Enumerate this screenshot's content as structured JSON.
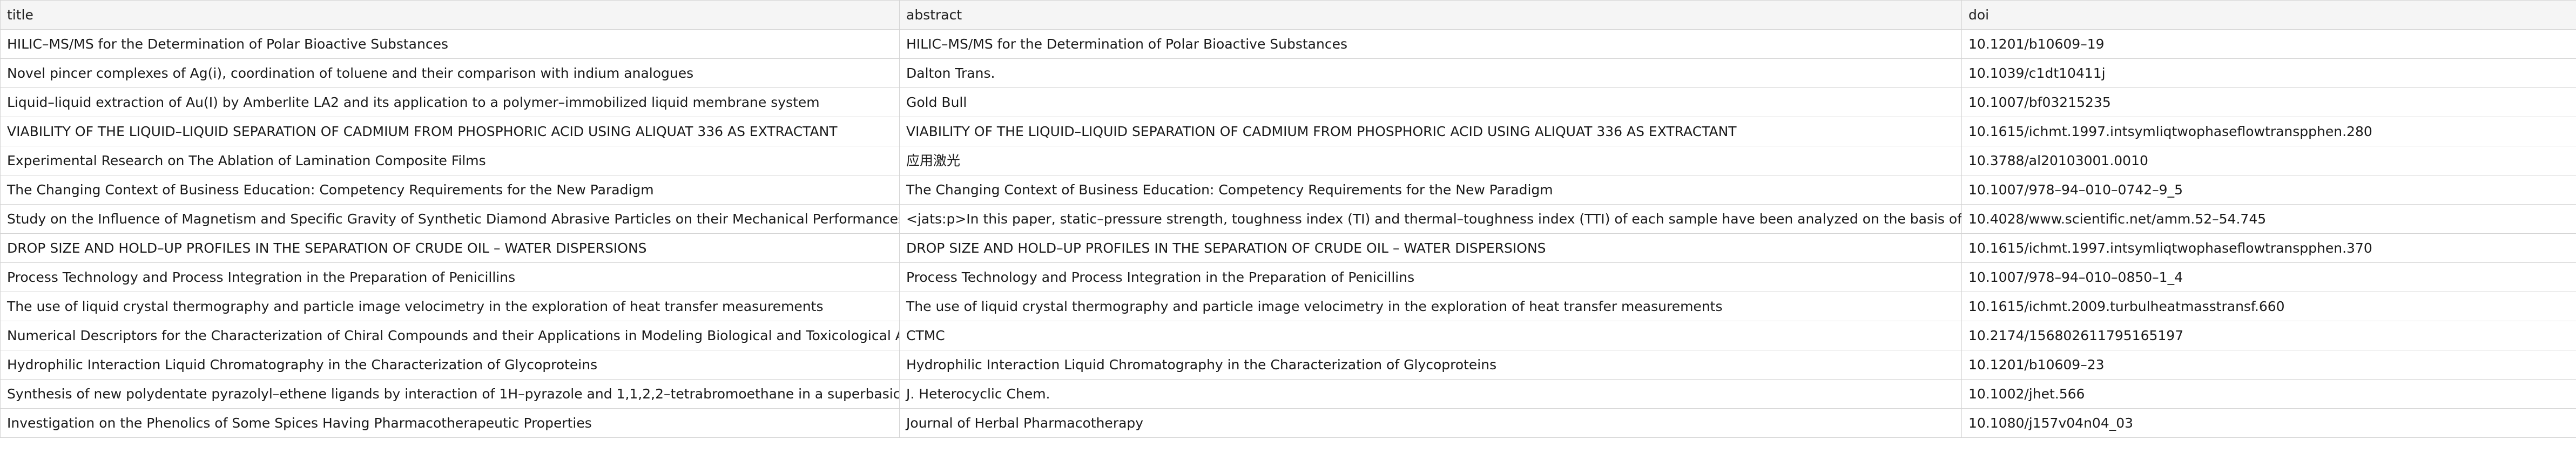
{
  "table": {
    "columns": [
      "title",
      "abstract",
      "doi"
    ],
    "rows": [
      {
        "title": "HILIC–MS/MS for the Determination of Polar Bioactive Substances",
        "abstract": "HILIC–MS/MS for the Determination of Polar Bioactive Substances",
        "doi": "10.1201/b10609–19"
      },
      {
        "title": "Novel pincer complexes of Ag(i), coordination of toluene and their comparison with indium analogues",
        "abstract": "Dalton Trans.",
        "doi": "10.1039/c1dt10411j"
      },
      {
        "title": "Liquid–liquid extraction of Au(I) by Amberlite LA2 and its application to a polymer–immobilized liquid membrane system",
        "abstract": "Gold Bull",
        "doi": "10.1007/bf03215235"
      },
      {
        "title": "VIABILITY OF THE LIQUID–LIQUID SEPARATION OF CADMIUM FROM PHOSPHORIC ACID USING ALIQUAT 336 AS EXTRACTANT",
        "abstract": "VIABILITY OF THE LIQUID–LIQUID SEPARATION OF CADMIUM FROM PHOSPHORIC ACID USING ALIQUAT 336 AS EXTRACTANT",
        "doi": "10.1615/ichmt.1997.intsymliqtwophaseflowtranspphen.280"
      },
      {
        "title": "Experimental Research on The Ablation of Lamination Composite Films",
        "abstract": "应用激光",
        "doi": "10.3788/al20103001.0010"
      },
      {
        "title": "The Changing Context of Business Education: Competency Requirements for the New Paradigm",
        "abstract": "The Changing Context of Business Education: Competency Requirements for the New Paradigm",
        "doi": "10.1007/978–94–010–0742–9_5"
      },
      {
        "title": "Study on the Influence of Magnetism and Specific Gravity of Synthetic Diamond Abrasive Particles on their Mechanical Performances",
        "abstract": "<jats:p>In this paper, static–pressure strength, toughness index (TI) and thermal–toughness index (TTI) of each sample have been analyzed on the basis of the experim",
        "doi": "10.4028/www.scientific.net/amm.52–54.745"
      },
      {
        "title": "DROP SIZE AND HOLD–UP PROFILES IN THE SEPARATION OF CRUDE OIL – WATER DISPERSIONS",
        "abstract": "DROP SIZE AND HOLD–UP PROFILES IN THE SEPARATION OF CRUDE OIL – WATER DISPERSIONS",
        "doi": "10.1615/ichmt.1997.intsymliqtwophaseflowtranspphen.370"
      },
      {
        "title": "Process Technology and Process Integration in the Preparation of Penicillins",
        "abstract": "Process Technology and Process Integration in the Preparation of Penicillins",
        "doi": "10.1007/978–94–010–0850–1_4"
      },
      {
        "title": "The use of liquid crystal thermography and particle image velocimetry in the exploration of heat transfer measurements",
        "abstract": "The use of liquid crystal thermography and particle image velocimetry in the exploration of heat transfer measurements",
        "doi": "10.1615/ichmt.2009.turbulheatmasstransf.660"
      },
      {
        "title": "Numerical Descriptors for the Characterization of Chiral Compounds and their Applications in Modeling Biological and Toxicological Activities",
        "abstract": "CTMC",
        "doi": "10.2174/156802611795165197"
      },
      {
        "title": "Hydrophilic Interaction Liquid Chromatography in the Characterization of Glycoproteins",
        "abstract": "Hydrophilic Interaction Liquid Chromatography in the Characterization of Glycoproteins",
        "doi": "10.1201/b10609–23"
      },
      {
        "title": "Synthesis of new polydentate pyrazolyl–ethene ligands by interaction of 1H–pyrazole and 1,1,2,2–tetrabromoethane in a superbasic medium",
        "abstract": "J. Heterocyclic Chem.",
        "doi": "10.1002/jhet.566"
      },
      {
        "title": "Investigation on the Phenolics of Some Spices Having Pharmacotherapeutic Properties",
        "abstract": "Journal of Herbal Pharmacotherapy",
        "doi": "10.1080/j157v04n04_03"
      }
    ]
  }
}
